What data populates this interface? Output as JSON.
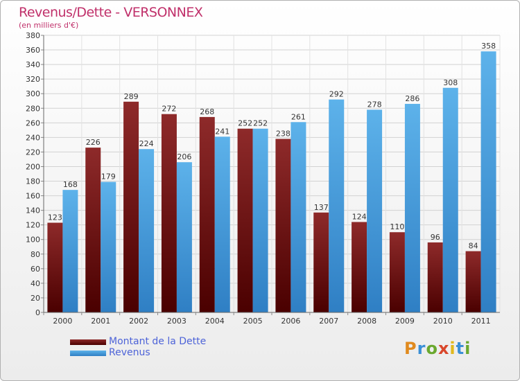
{
  "header": {
    "title": "Revenus/Dette - VERSONNEX",
    "subtitle": "(en milliers d'€)"
  },
  "logo": {
    "text": "Proxiti"
  },
  "chart_data": {
    "type": "bar",
    "categories": [
      "2000",
      "2001",
      "2002",
      "2003",
      "2004",
      "2005",
      "2006",
      "2007",
      "2008",
      "2009",
      "2010",
      "2011"
    ],
    "series": [
      {
        "name": "Montant de la Dette",
        "color": "#6e1010",
        "values": [
          123,
          226,
          289,
          272,
          268,
          252,
          238,
          137,
          124,
          110,
          96,
          84
        ]
      },
      {
        "name": "Revenus",
        "color": "#4aa3e0",
        "values": [
          168,
          179,
          224,
          206,
          241,
          252,
          261,
          292,
          278,
          286,
          308,
          358
        ]
      }
    ],
    "ylim": [
      0,
      380
    ],
    "yticks": [
      0,
      20,
      40,
      60,
      80,
      100,
      120,
      140,
      160,
      180,
      200,
      220,
      240,
      260,
      280,
      300,
      320,
      340,
      360,
      380
    ],
    "grid": true,
    "legend": "bottom-left"
  }
}
